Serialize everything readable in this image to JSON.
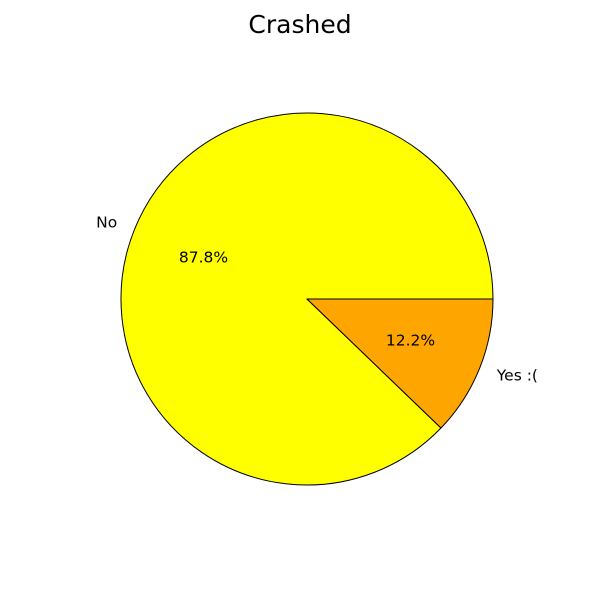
{
  "chart_data": {
    "type": "pie",
    "title": "Crashed",
    "slices": [
      {
        "label": "No",
        "value": 87.8,
        "pct_label": "87.8%",
        "color": "#ffff00"
      },
      {
        "label": "Yes :(",
        "value": 12.2,
        "pct_label": "12.2%",
        "color": "#ffa500"
      }
    ],
    "edge_color": "#000000",
    "start_angle_deg": 0,
    "direction": "counterclockwise"
  }
}
